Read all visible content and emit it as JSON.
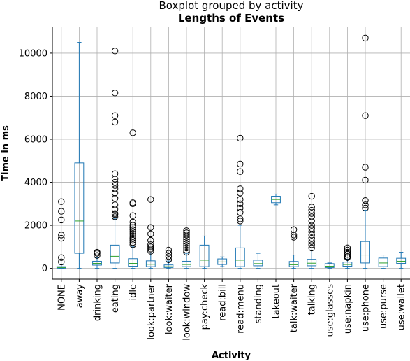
{
  "chart_data": {
    "type": "box",
    "suptitle": "Boxplot grouped by activity",
    "title": "Lengths of Events",
    "xlabel": "Activity",
    "ylabel": "Time in ms",
    "ylim": [
      -500,
      11200
    ],
    "yticks": [
      0,
      2000,
      4000,
      6000,
      8000,
      10000
    ],
    "grid": true,
    "colors": {
      "box": "#1f77b4",
      "median": "#2ca02c",
      "flier": "#000000",
      "grid": "#b0b0b0"
    },
    "categories": [
      "NONE",
      "away",
      "drinking",
      "eating",
      "idle",
      "look:partner",
      "look:waiter",
      "look:window",
      "pay:check",
      "read:bill",
      "read:menu",
      "standing",
      "takeout",
      "talk:waiter",
      "talking",
      "use:glasses",
      "use:napkin",
      "use:phone",
      "use:purse",
      "use:wallet"
    ],
    "boxes": [
      {
        "whislo": 0,
        "q1": 10,
        "med": 40,
        "q3": 80,
        "whishi": 180,
        "fliers": [
          300,
          500,
          1400,
          1550,
          2250,
          2650,
          3100
        ]
      },
      {
        "whislo": 0,
        "q1": 700,
        "med": 2200,
        "q3": 4900,
        "whishi": 10500,
        "fliers": []
      },
      {
        "whislo": 0,
        "q1": 150,
        "med": 230,
        "q3": 330,
        "whishi": 500,
        "fliers": [
          600,
          700,
          750
        ]
      },
      {
        "whislo": 0,
        "q1": 250,
        "med": 560,
        "q3": 1080,
        "whishi": 2300,
        "fliers": [
          2400,
          2500,
          2550,
          2750,
          2950,
          3250,
          3500,
          3700,
          3850,
          4000,
          4150,
          4400,
          6800,
          7100,
          8150,
          10100
        ]
      },
      {
        "whislo": 0,
        "q1": 100,
        "med": 230,
        "q3": 450,
        "whishi": 1000,
        "fliers": [
          1100,
          1200,
          1300,
          1400,
          1500,
          1600,
          1700,
          1800,
          1900,
          2000,
          2150,
          2450,
          3000,
          3050,
          6300
        ]
      },
      {
        "whislo": 0,
        "q1": 80,
        "med": 190,
        "q3": 350,
        "whishi": 720,
        "fliers": [
          800,
          900,
          1000,
          1100,
          1300,
          1600,
          1900,
          3200
        ]
      },
      {
        "whislo": 0,
        "q1": 40,
        "med": 80,
        "q3": 160,
        "whishi": 340,
        "fliers": [
          400,
          550,
          700,
          850
        ]
      },
      {
        "whislo": 0,
        "q1": 80,
        "med": 180,
        "q3": 330,
        "whishi": 700,
        "fliers": [
          750,
          850,
          950,
          1050,
          1150,
          1250,
          1350,
          1450,
          1550,
          1650,
          1750
        ]
      },
      {
        "whislo": 0,
        "q1": 80,
        "med": 380,
        "q3": 1080,
        "whishi": 1500,
        "fliers": []
      },
      {
        "whislo": 80,
        "q1": 180,
        "med": 300,
        "q3": 440,
        "whishi": 530,
        "fliers": []
      },
      {
        "whislo": 0,
        "q1": 80,
        "med": 380,
        "q3": 950,
        "whishi": 2000,
        "fliers": [
          2200,
          2300,
          2600,
          2800,
          3000,
          3200,
          3500,
          3700,
          4500,
          4850,
          6050
        ]
      },
      {
        "whislo": 0,
        "q1": 120,
        "med": 220,
        "q3": 380,
        "whishi": 700,
        "fliers": []
      },
      {
        "whislo": 2950,
        "q1": 3050,
        "med": 3200,
        "q3": 3350,
        "whishi": 3450,
        "fliers": []
      },
      {
        "whislo": 0,
        "q1": 80,
        "med": 170,
        "q3": 320,
        "whishi": 620,
        "fliers": [
          1450,
          1550,
          1800
        ]
      },
      {
        "whislo": 0,
        "q1": 120,
        "med": 240,
        "q3": 420,
        "whishi": 850,
        "fliers": [
          950,
          1100,
          1250,
          1400,
          1550,
          1700,
          1850,
          2000,
          2200,
          2400,
          2550,
          2700,
          2850,
          3350
        ]
      },
      {
        "whislo": 0,
        "q1": 40,
        "med": 100,
        "q3": 220,
        "whishi": 250,
        "fliers": []
      },
      {
        "whislo": 0,
        "q1": 100,
        "med": 180,
        "q3": 290,
        "whishi": 430,
        "fliers": [
          500,
          550,
          650,
          750,
          850,
          950
        ]
      },
      {
        "whislo": 0,
        "q1": 250,
        "med": 620,
        "q3": 1250,
        "whishi": 2700,
        "fliers": [
          2800,
          2950,
          3150,
          4100,
          4700,
          7100,
          10700
        ]
      },
      {
        "whislo": 0,
        "q1": 80,
        "med": 250,
        "q3": 480,
        "whishi": 620,
        "fliers": []
      },
      {
        "whislo": 0,
        "q1": 230,
        "med": 330,
        "q3": 470,
        "whishi": 750,
        "fliers": []
      }
    ]
  }
}
